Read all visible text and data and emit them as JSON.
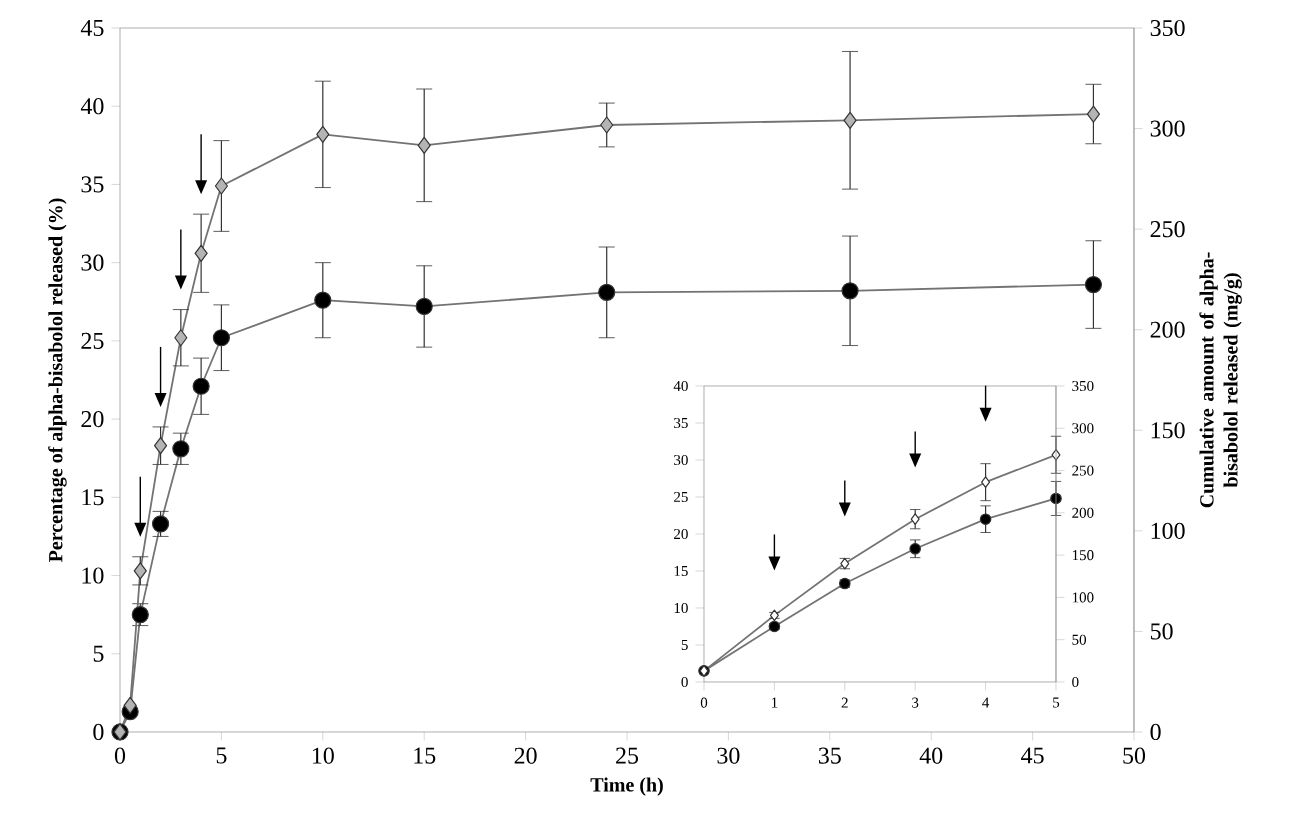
{
  "chart_data": [
    {
      "type": "line",
      "xlabel": "Time (h)",
      "ylabel": "Percentage of alpha-bisabolol released (%)",
      "y2label": "Cumulative amount of alpha-bisabolol released (mg/g)",
      "xlim": [
        0,
        50
      ],
      "xticks": [
        0,
        5,
        10,
        15,
        20,
        25,
        30,
        35,
        40,
        45,
        50
      ],
      "ylim": [
        0,
        45
      ],
      "yticks": [
        0,
        5,
        10,
        15,
        20,
        25,
        30,
        35,
        40,
        45
      ],
      "y2lim": [
        0,
        350
      ],
      "y2ticks": [
        0,
        50,
        100,
        150,
        200,
        250,
        300,
        350
      ],
      "series": [
        {
          "color": "#b4b4b4",
          "marker": "diamond",
          "x": [
            0,
            0.5,
            1,
            2,
            3,
            4,
            5,
            10,
            15,
            24,
            36,
            48
          ],
          "values": [
            0,
            1.7,
            10.3,
            18.3,
            25.2,
            30.6,
            34.9,
            38.2,
            37.5,
            38.8,
            39.1,
            39.5
          ],
          "errors": [
            null,
            null,
            0.9,
            1.2,
            1.8,
            2.5,
            2.9,
            3.4,
            3.6,
            1.4,
            4.4,
            1.9
          ]
        },
        {
          "color": "#000000",
          "marker": "circle",
          "x": [
            0,
            0.5,
            1,
            2,
            3,
            4,
            5,
            10,
            15,
            24,
            36,
            48
          ],
          "values": [
            0,
            1.3,
            7.5,
            13.3,
            18.1,
            22.1,
            25.2,
            27.6,
            27.2,
            28.1,
            28.2,
            28.6
          ],
          "errors": [
            null,
            null,
            0.7,
            0.8,
            1.0,
            1.8,
            2.1,
            2.4,
            2.6,
            2.9,
            3.5,
            2.8
          ]
        }
      ]
    },
    {
      "type": "line",
      "xlim": [
        0,
        5
      ],
      "xticks": [
        0,
        1,
        2,
        3,
        4,
        5
      ],
      "ylim": [
        0,
        40
      ],
      "yticks": [
        0,
        5,
        10,
        15,
        20,
        25,
        30,
        35,
        40
      ],
      "y2lim": [
        0,
        350
      ],
      "y2ticks": [
        0,
        50,
        100,
        150,
        200,
        250,
        300,
        350
      ],
      "series": [
        {
          "color": "#ffffff",
          "marker": "diamond",
          "x": [
            0,
            1,
            2,
            3,
            4,
            5
          ],
          "values": [
            1.5,
            9.0,
            16.0,
            22.0,
            27.0,
            30.7
          ],
          "errors": [
            null,
            0.4,
            0.7,
            1.3,
            2.5,
            2.5
          ]
        },
        {
          "color": "#000000",
          "marker": "circle",
          "x": [
            0,
            1,
            2,
            3,
            4,
            5
          ],
          "values": [
            1.5,
            7.5,
            13.3,
            18.0,
            22.0,
            24.8
          ],
          "errors": [
            null,
            0.4,
            0.5,
            1.2,
            1.8,
            2.3
          ]
        }
      ]
    }
  ]
}
